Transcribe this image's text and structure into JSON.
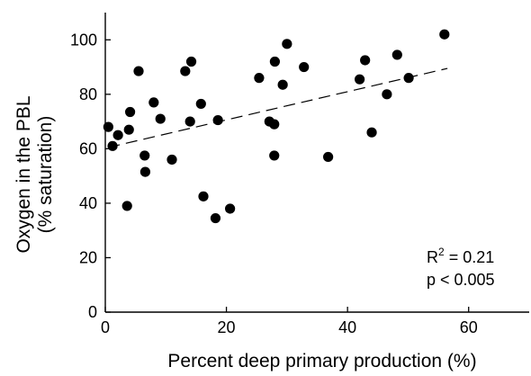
{
  "chart_data": {
    "type": "scatter",
    "xlabel": "Percent deep primary production (%)",
    "ylabel_lines": [
      "Oxygen in the PBL",
      "(% saturation)"
    ],
    "xlim": [
      0,
      70
    ],
    "ylim": [
      0,
      110
    ],
    "x_ticks": [
      0,
      20,
      40,
      60
    ],
    "y_ticks": [
      0,
      20,
      40,
      60,
      80,
      100
    ],
    "x_tick_labels": [
      "0",
      "20",
      "40",
      "60"
    ],
    "y_tick_labels": [
      "0",
      "20",
      "40",
      "60",
      "80",
      "100"
    ],
    "grid": false,
    "annotations": {
      "r2_prefix": "R",
      "r2_superscript": "2",
      "r2_suffix": " = 0.21",
      "p_value": "p < 0.005"
    },
    "trendline": {
      "style": "dashed",
      "x": [
        0.5,
        56.5
      ],
      "y": [
        60.5,
        89.5
      ]
    },
    "points": [
      {
        "x": 0.5,
        "y": 68
      },
      {
        "x": 1.2,
        "y": 61
      },
      {
        "x": 2.1,
        "y": 65
      },
      {
        "x": 3.6,
        "y": 39
      },
      {
        "x": 3.9,
        "y": 67
      },
      {
        "x": 4.1,
        "y": 73.5
      },
      {
        "x": 5.5,
        "y": 88.5
      },
      {
        "x": 6.5,
        "y": 57.5
      },
      {
        "x": 6.6,
        "y": 51.5
      },
      {
        "x": 8.0,
        "y": 77
      },
      {
        "x": 9.1,
        "y": 71
      },
      {
        "x": 11.0,
        "y": 56
      },
      {
        "x": 13.2,
        "y": 88.5
      },
      {
        "x": 14.0,
        "y": 70
      },
      {
        "x": 14.2,
        "y": 92
      },
      {
        "x": 15.8,
        "y": 76.5
      },
      {
        "x": 16.2,
        "y": 42.5
      },
      {
        "x": 18.2,
        "y": 34.5
      },
      {
        "x": 18.6,
        "y": 70.5
      },
      {
        "x": 20.6,
        "y": 38
      },
      {
        "x": 25.4,
        "y": 86
      },
      {
        "x": 27.1,
        "y": 70
      },
      {
        "x": 27.9,
        "y": 69
      },
      {
        "x": 27.9,
        "y": 57.5
      },
      {
        "x": 28.0,
        "y": 92
      },
      {
        "x": 29.3,
        "y": 83.5
      },
      {
        "x": 30.0,
        "y": 98.5
      },
      {
        "x": 32.8,
        "y": 90
      },
      {
        "x": 36.8,
        "y": 57
      },
      {
        "x": 42.0,
        "y": 85.5
      },
      {
        "x": 42.9,
        "y": 92.5
      },
      {
        "x": 44.0,
        "y": 66
      },
      {
        "x": 46.5,
        "y": 80
      },
      {
        "x": 48.2,
        "y": 94.5
      },
      {
        "x": 50.1,
        "y": 86
      },
      {
        "x": 56.0,
        "y": 102
      }
    ]
  }
}
